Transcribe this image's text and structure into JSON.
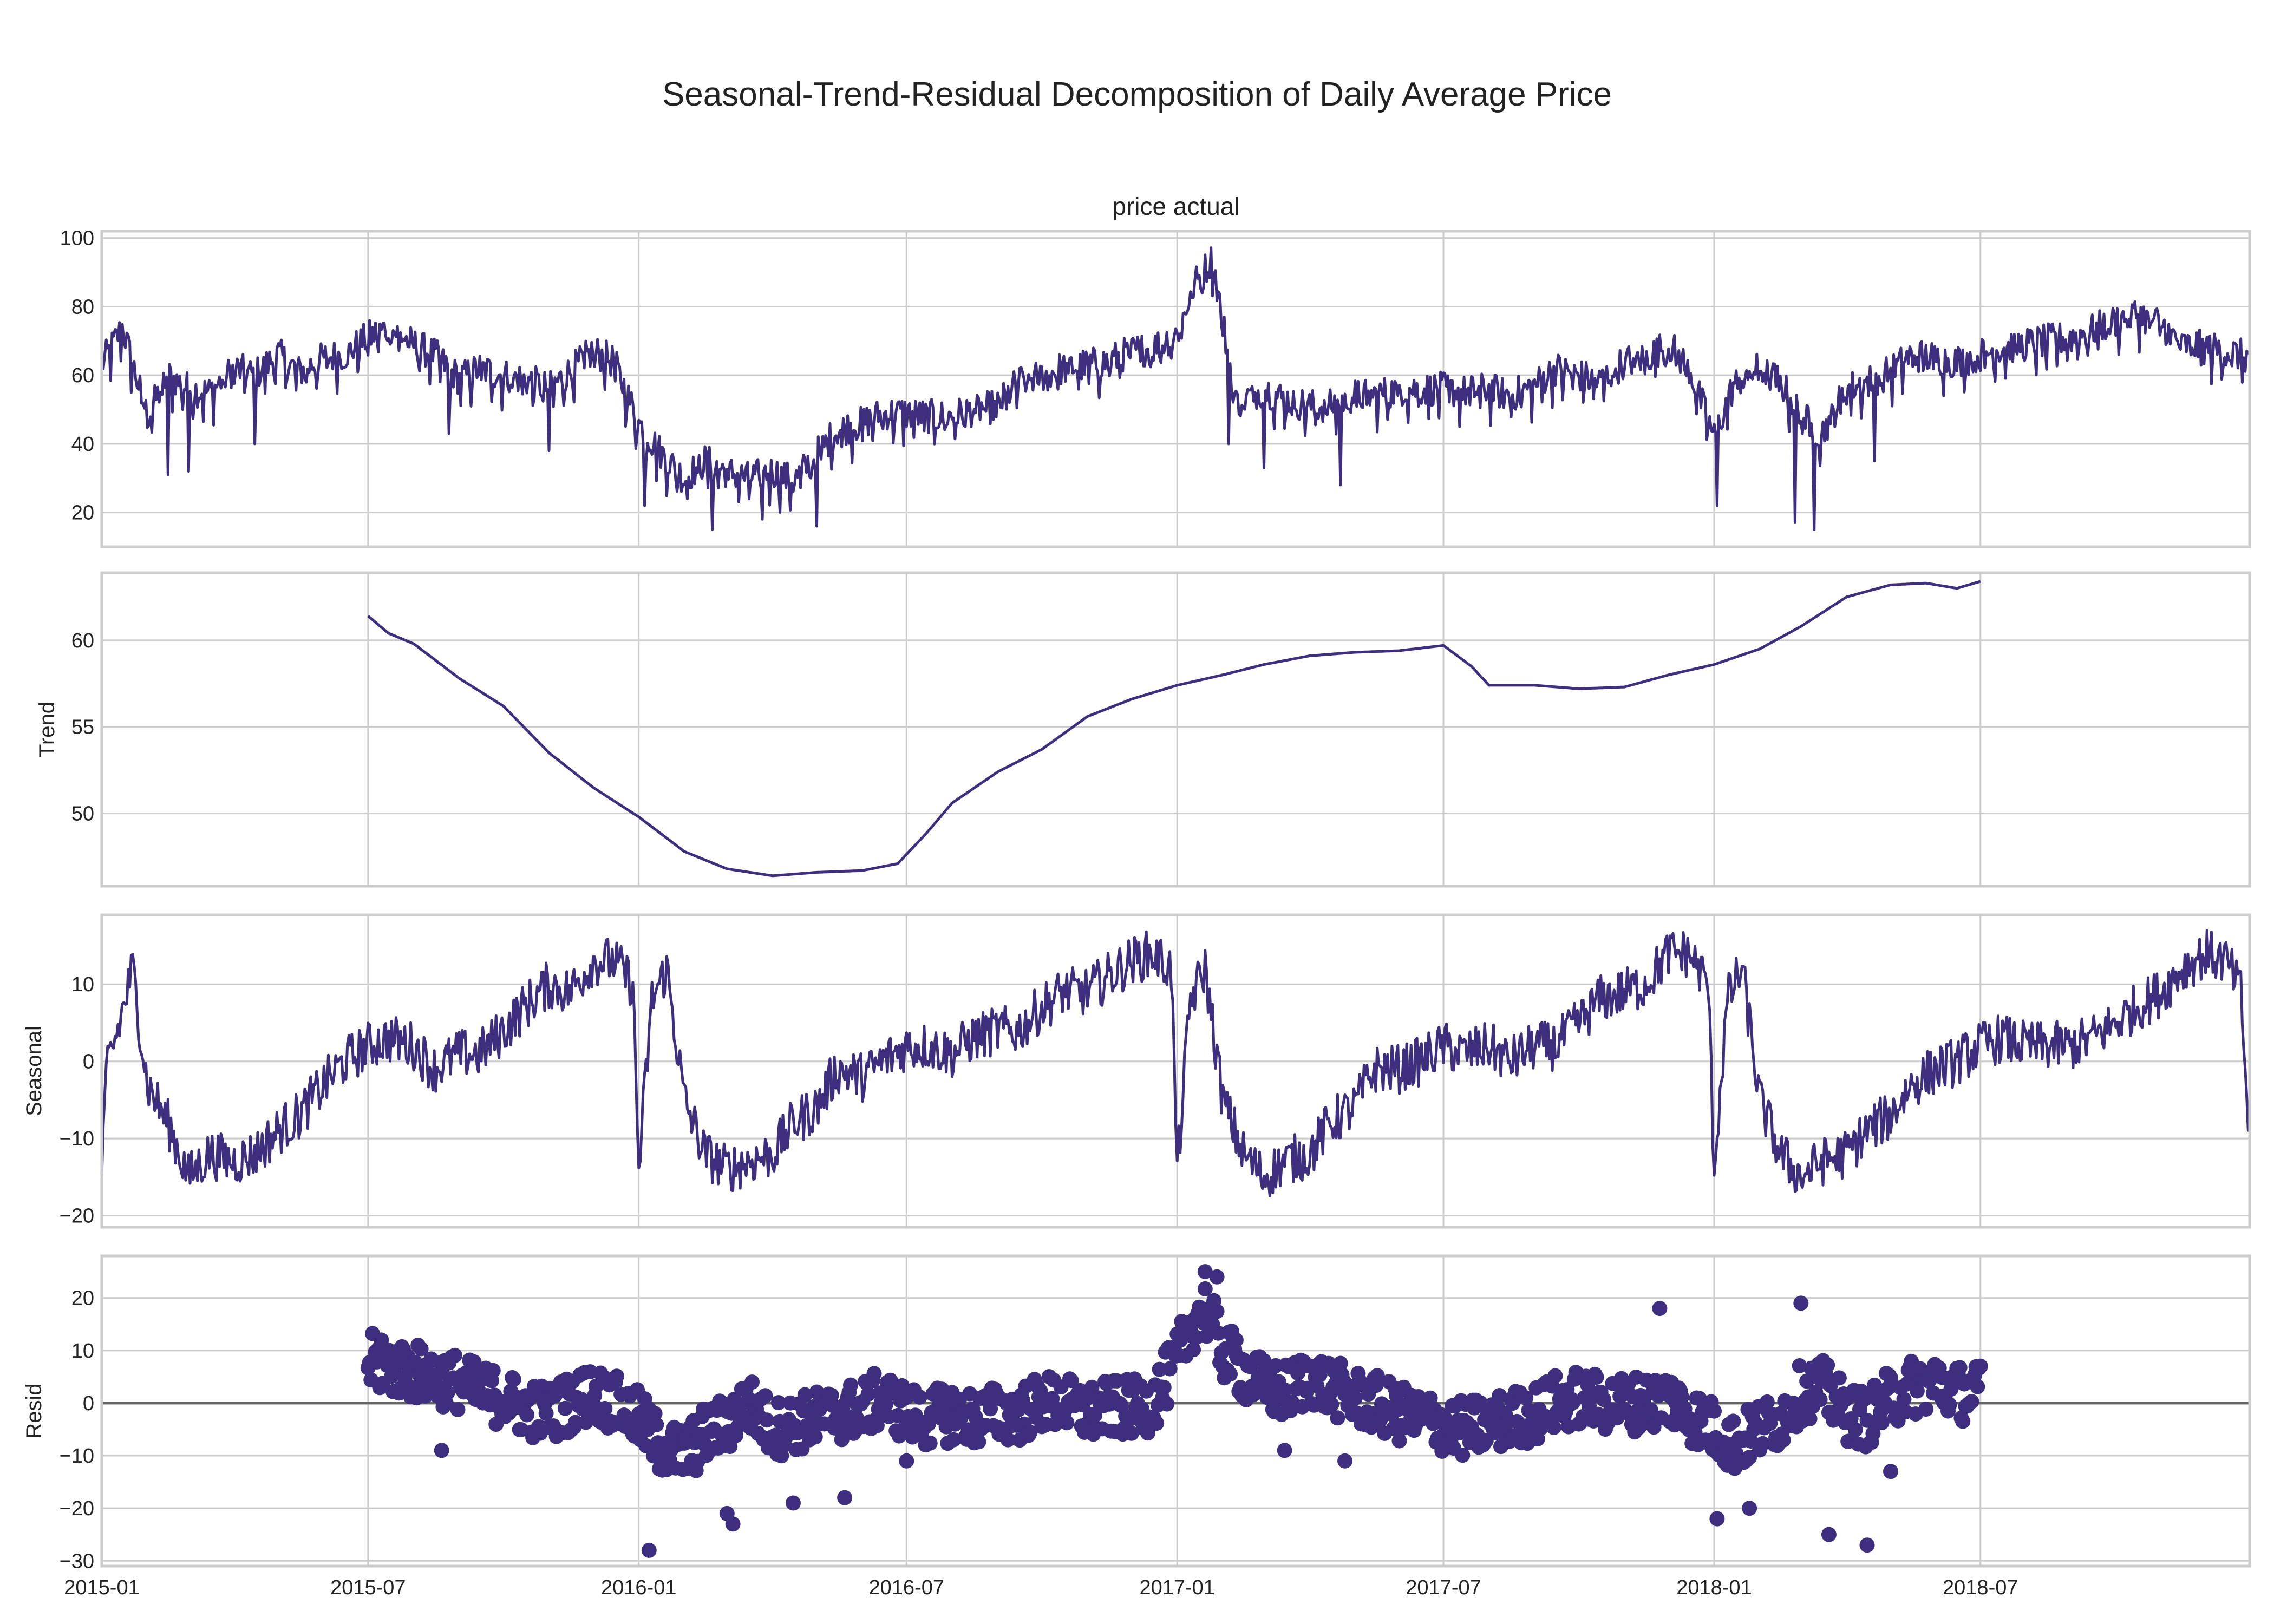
{
  "figure": {
    "title": "Seasonal-Trend-Residual Decomposition of Daily Average Price",
    "line_color": "#3f2e7e",
    "grid_color": "#cccccc",
    "zero_line_color": "#666666"
  },
  "chart_data": [
    {
      "type": "line",
      "panel": "observed",
      "title": "price actual",
      "ylabel": "",
      "xlim": [
        "2015-01-01",
        "2018-12-31"
      ],
      "ylim": [
        10,
        102
      ],
      "yticks": [
        20,
        40,
        60,
        80,
        100
      ],
      "xticks": [
        "2015-01-01",
        "2015-07-01",
        "2016-01-01",
        "2016-07-01",
        "2017-01-01",
        "2017-07-01",
        "2018-01-01",
        "2018-07-01"
      ],
      "xtick_labels": [
        "2015-01",
        "2015-07",
        "2016-01",
        "2016-07",
        "2017-01",
        "2017-07",
        "2018-01",
        "2018-07"
      ],
      "x": [
        "2015-01-01",
        "2015-01-15",
        "2015-02-01",
        "2015-02-15",
        "2015-03-01",
        "2015-03-15",
        "2015-04-01",
        "2015-04-15",
        "2015-05-01",
        "2015-05-15",
        "2015-06-01",
        "2015-06-15",
        "2015-07-01",
        "2015-07-15",
        "2015-08-01",
        "2015-08-15",
        "2015-09-01",
        "2015-09-15",
        "2015-10-01",
        "2015-10-15",
        "2015-11-01",
        "2015-11-15",
        "2015-12-01",
        "2015-12-15",
        "2016-01-01",
        "2016-01-15",
        "2016-02-01",
        "2016-02-15",
        "2016-03-01",
        "2016-03-15",
        "2016-04-01",
        "2016-04-15",
        "2016-05-01",
        "2016-05-15",
        "2016-06-01",
        "2016-06-15",
        "2016-07-01",
        "2016-07-15",
        "2016-08-01",
        "2016-08-15",
        "2016-09-01",
        "2016-09-15",
        "2016-10-01",
        "2016-10-15",
        "2016-11-01",
        "2016-11-15",
        "2016-12-01",
        "2016-12-15",
        "2017-01-01",
        "2017-01-12",
        "2017-01-25",
        "2017-02-10",
        "2017-03-01",
        "2017-03-15",
        "2017-04-01",
        "2017-04-15",
        "2017-05-01",
        "2017-05-15",
        "2017-06-01",
        "2017-06-15",
        "2017-07-01",
        "2017-07-15",
        "2017-08-01",
        "2017-08-15",
        "2017-09-01",
        "2017-09-15",
        "2017-10-01",
        "2017-10-15",
        "2017-11-01",
        "2017-11-15",
        "2017-12-01",
        "2017-12-15",
        "2018-01-01",
        "2018-01-15",
        "2018-02-01",
        "2018-02-15",
        "2018-03-01",
        "2018-03-15",
        "2018-04-01",
        "2018-04-15",
        "2018-05-01",
        "2018-05-15",
        "2018-06-01",
        "2018-06-15",
        "2018-07-01",
        "2018-07-15",
        "2018-08-01",
        "2018-08-15",
        "2018-09-01",
        "2018-09-15",
        "2018-10-01",
        "2018-10-15",
        "2018-11-01",
        "2018-11-15",
        "2018-12-01",
        "2018-12-15",
        "2018-12-31"
      ],
      "y": [
        63,
        74,
        48,
        60,
        56,
        55,
        62,
        60,
        66,
        61,
        65,
        66,
        71,
        74,
        69,
        66,
        59,
        62,
        60,
        59,
        56,
        61,
        67,
        64,
        46,
        38,
        30,
        35,
        32,
        30,
        32,
        29,
        37,
        44,
        46,
        49,
        49,
        48,
        48,
        50,
        51,
        58,
        60,
        62,
        63,
        64,
        67,
        68,
        72,
        86,
        94,
        52,
        56,
        53,
        51,
        51,
        54,
        54,
        56,
        56,
        56,
        55,
        56,
        54,
        57,
        62,
        60,
        58,
        64,
        65,
        69,
        62,
        42,
        58,
        62,
        58,
        48,
        43,
        56,
        58,
        61,
        66,
        65,
        64,
        66,
        68,
        69,
        70,
        71,
        73,
        76,
        78,
        75,
        69,
        68,
        67,
        65
      ],
      "dips": [
        {
          "x": "2015-02-15",
          "y": 31
        },
        {
          "x": "2015-03-01",
          "y": 32
        },
        {
          "x": "2015-04-15",
          "y": 40
        },
        {
          "x": "2015-08-25",
          "y": 43
        },
        {
          "x": "2015-11-01",
          "y": 38
        },
        {
          "x": "2016-01-05",
          "y": 22
        },
        {
          "x": "2016-02-20",
          "y": 15
        },
        {
          "x": "2016-03-25",
          "y": 18
        },
        {
          "x": "2016-05-01",
          "y": 16
        },
        {
          "x": "2017-02-05",
          "y": 40
        },
        {
          "x": "2017-03-01",
          "y": 33
        },
        {
          "x": "2017-04-22",
          "y": 28
        },
        {
          "x": "2018-01-03",
          "y": 22
        },
        {
          "x": "2018-02-25",
          "y": 17
        },
        {
          "x": "2018-03-10",
          "y": 15
        },
        {
          "x": "2018-04-20",
          "y": 35
        }
      ]
    },
    {
      "type": "line",
      "panel": "trend",
      "title": "",
      "ylabel": "Trend",
      "xlim": [
        "2015-01-01",
        "2018-12-31"
      ],
      "ylim": [
        45.8,
        63.9
      ],
      "yticks": [
        50,
        55,
        60
      ],
      "x": [
        "2015-07-01",
        "2015-07-15",
        "2015-08-01",
        "2015-08-15",
        "2015-09-01",
        "2015-10-01",
        "2015-11-01",
        "2015-12-01",
        "2016-01-01",
        "2016-02-01",
        "2016-03-01",
        "2016-04-01",
        "2016-05-01",
        "2016-06-01",
        "2016-06-25",
        "2016-07-15",
        "2016-08-01",
        "2016-09-01",
        "2016-10-01",
        "2016-11-01",
        "2016-12-01",
        "2017-01-01",
        "2017-02-01",
        "2017-03-01",
        "2017-04-01",
        "2017-05-01",
        "2017-06-01",
        "2017-07-01",
        "2017-07-20",
        "2017-08-01",
        "2017-09-01",
        "2017-10-01",
        "2017-11-01",
        "2017-12-01",
        "2018-01-01",
        "2018-02-01",
        "2018-03-01",
        "2018-04-01",
        "2018-05-01",
        "2018-05-25",
        "2018-06-15",
        "2018-07-01"
      ],
      "values": [
        61.4,
        60.4,
        59.8,
        58.9,
        57.8,
        56.2,
        53.5,
        51.5,
        49.8,
        47.8,
        46.8,
        46.4,
        46.6,
        46.7,
        47.1,
        48.9,
        50.6,
        52.4,
        53.7,
        55.6,
        56.6,
        57.4,
        58.0,
        58.6,
        59.1,
        59.3,
        59.4,
        59.7,
        58.5,
        57.4,
        57.4,
        57.2,
        57.3,
        58.0,
        58.6,
        59.5,
        60.8,
        62.5,
        63.2,
        63.3,
        63.0,
        63.4
      ]
    },
    {
      "type": "line",
      "panel": "seasonal",
      "title": "",
      "ylabel": "Seasonal",
      "xlim": [
        "2015-01-01",
        "2018-12-31"
      ],
      "ylim": [
        -21.5,
        19
      ],
      "yticks": [
        -20,
        -10,
        0,
        10
      ],
      "x": [
        "2015-01-01",
        "2015-01-05",
        "2015-01-12",
        "2015-01-22",
        "2015-02-01",
        "2015-02-15",
        "2015-03-01",
        "2015-03-15",
        "2015-04-01",
        "2015-04-15",
        "2015-05-01",
        "2015-05-15",
        "2015-06-01",
        "2015-06-15",
        "2015-07-01",
        "2015-07-15",
        "2015-08-01",
        "2015-08-15",
        "2015-09-01",
        "2015-09-15",
        "2015-10-01",
        "2015-10-15",
        "2015-11-01",
        "2015-11-15",
        "2015-12-01",
        "2015-12-15",
        "2015-12-28",
        "2016-01-01",
        "2016-01-10",
        "2016-01-20",
        "2016-02-01",
        "2016-02-15",
        "2016-03-01",
        "2016-03-15",
        "2016-04-01",
        "2016-04-15",
        "2016-05-01",
        "2016-05-15",
        "2016-06-01",
        "2016-06-15",
        "2016-07-01",
        "2016-07-15",
        "2016-08-01",
        "2016-08-15",
        "2016-09-01",
        "2016-09-15",
        "2016-10-01",
        "2016-10-15",
        "2016-11-01",
        "2016-11-15",
        "2016-12-01",
        "2016-12-15",
        "2016-12-28",
        "2017-01-01",
        "2017-01-10",
        "2017-01-20",
        "2017-02-01",
        "2017-02-15",
        "2017-03-01",
        "2017-03-15",
        "2017-04-01",
        "2017-04-15",
        "2017-05-01",
        "2017-05-15",
        "2017-06-01",
        "2017-06-15",
        "2017-07-01",
        "2017-07-15",
        "2017-08-01",
        "2017-08-15",
        "2017-09-01",
        "2017-09-15",
        "2017-10-01",
        "2017-10-15",
        "2017-11-01",
        "2017-11-15",
        "2017-12-01",
        "2017-12-15",
        "2017-12-28",
        "2018-01-01",
        "2018-01-10",
        "2018-01-20",
        "2018-02-01",
        "2018-02-15",
        "2018-03-01",
        "2018-03-15",
        "2018-04-01",
        "2018-04-15",
        "2018-05-01",
        "2018-05-15",
        "2018-06-01",
        "2018-06-15",
        "2018-07-01",
        "2018-07-15",
        "2018-08-01",
        "2018-08-15",
        "2018-09-01",
        "2018-09-15",
        "2018-10-01",
        "2018-10-15",
        "2018-11-01",
        "2018-11-15",
        "2018-12-01",
        "2018-12-15",
        "2018-12-25",
        "2018-12-31"
      ],
      "values": [
        -14,
        0,
        4,
        12,
        -3,
        -8,
        -15,
        -12,
        -13,
        -12,
        -9,
        -7,
        -3,
        0,
        2,
        3,
        2,
        -1,
        1,
        1,
        4,
        7,
        10,
        9,
        13,
        13,
        10,
        -14,
        8,
        12,
        -5,
        -12,
        -14,
        -13,
        -12,
        -8,
        -6,
        -1,
        -2,
        0,
        2,
        2,
        1,
        3,
        4,
        4,
        7,
        9,
        9,
        11,
        13,
        14,
        12,
        -14,
        8,
        12,
        -5,
        -12,
        -15,
        -13,
        -12,
        -8,
        -6,
        -1,
        -1,
        0,
        2,
        1,
        2,
        0,
        2,
        2,
        5,
        8,
        9,
        10,
        14,
        14,
        10,
        -14,
        8,
        12,
        -5,
        -12,
        -15,
        -13,
        -12,
        -9,
        -7,
        -3,
        -1,
        0,
        2,
        3,
        2,
        2,
        2,
        3,
        5,
        7,
        9,
        12,
        14,
        13,
        9,
        -11
      ]
    },
    {
      "type": "scatter",
      "panel": "resid",
      "title": "",
      "ylabel": "Resid",
      "xlim": [
        "2015-01-01",
        "2018-12-31"
      ],
      "ylim": [
        -31,
        28
      ],
      "yticks": [
        -30,
        -20,
        -10,
        0,
        10,
        20
      ],
      "hline": 0,
      "x": [
        "2015-07-01",
        "2015-07-15",
        "2015-08-01",
        "2015-08-15",
        "2015-09-01",
        "2015-09-15",
        "2015-10-01",
        "2015-10-15",
        "2015-11-01",
        "2015-11-15",
        "2015-12-01",
        "2015-12-15",
        "2016-01-01",
        "2016-01-15",
        "2016-02-01",
        "2016-02-15",
        "2016-03-01",
        "2016-03-15",
        "2016-04-01",
        "2016-04-15",
        "2016-05-01",
        "2016-05-15",
        "2016-06-01",
        "2016-06-15",
        "2016-07-01",
        "2016-07-15",
        "2016-08-01",
        "2016-08-15",
        "2016-09-01",
        "2016-09-15",
        "2016-10-01",
        "2016-10-15",
        "2016-11-01",
        "2016-11-15",
        "2016-12-01",
        "2016-12-15",
        "2017-01-01",
        "2017-01-10",
        "2017-01-20",
        "2017-02-01",
        "2017-02-15",
        "2017-03-01",
        "2017-03-15",
        "2017-04-01",
        "2017-04-15",
        "2017-05-01",
        "2017-05-15",
        "2017-06-01",
        "2017-06-15",
        "2017-07-01",
        "2017-07-15",
        "2017-08-01",
        "2017-08-15",
        "2017-09-01",
        "2017-09-15",
        "2017-10-01",
        "2017-10-15",
        "2017-11-01",
        "2017-11-15",
        "2017-12-01",
        "2017-12-15",
        "2018-01-01",
        "2018-01-15",
        "2018-02-01",
        "2018-02-15",
        "2018-03-01",
        "2018-03-15",
        "2018-04-01",
        "2018-04-15",
        "2018-05-01",
        "2018-05-15",
        "2018-06-01",
        "2018-06-15",
        "2018-07-01"
      ],
      "values": [
        8,
        7,
        6,
        5,
        4,
        2,
        1,
        -1,
        -2,
        0,
        2,
        0,
        -3,
        -8,
        -10,
        -6,
        -4,
        0,
        -5,
        -4,
        -3,
        -2,
        -1,
        1,
        -2,
        -3,
        -2,
        -3,
        -2,
        -2,
        0,
        0,
        -2,
        -1,
        -1,
        0,
        8,
        15,
        18,
        10,
        6,
        3,
        2,
        5,
        3,
        1,
        0,
        -2,
        -3,
        -4,
        -5,
        -4,
        -3,
        -2,
        0,
        1,
        0,
        0,
        0,
        1,
        -2,
        -5,
        -8,
        -5,
        -3,
        2,
        3,
        -2,
        -3,
        1,
        3,
        4,
        2,
        2
      ],
      "outliers": [
        {
          "x": "2015-07-10",
          "y": 12
        },
        {
          "x": "2015-08-20",
          "y": -9
        },
        {
          "x": "2016-01-08",
          "y": -28
        },
        {
          "x": "2016-03-05",
          "y": -23
        },
        {
          "x": "2016-03-01",
          "y": -21
        },
        {
          "x": "2016-04-15",
          "y": -19
        },
        {
          "x": "2016-05-20",
          "y": -18
        },
        {
          "x": "2016-07-01",
          "y": -11
        },
        {
          "x": "2017-01-20",
          "y": 25
        },
        {
          "x": "2017-01-28",
          "y": 24
        },
        {
          "x": "2017-02-10",
          "y": 12
        },
        {
          "x": "2017-03-15",
          "y": -9
        },
        {
          "x": "2017-04-25",
          "y": -11
        },
        {
          "x": "2017-11-25",
          "y": 18
        },
        {
          "x": "2018-01-03",
          "y": -22
        },
        {
          "x": "2018-01-25",
          "y": -20
        },
        {
          "x": "2018-03-01",
          "y": 19
        },
        {
          "x": "2018-03-20",
          "y": -25
        },
        {
          "x": "2018-04-15",
          "y": -27
        },
        {
          "x": "2018-05-01",
          "y": -13
        }
      ]
    }
  ]
}
